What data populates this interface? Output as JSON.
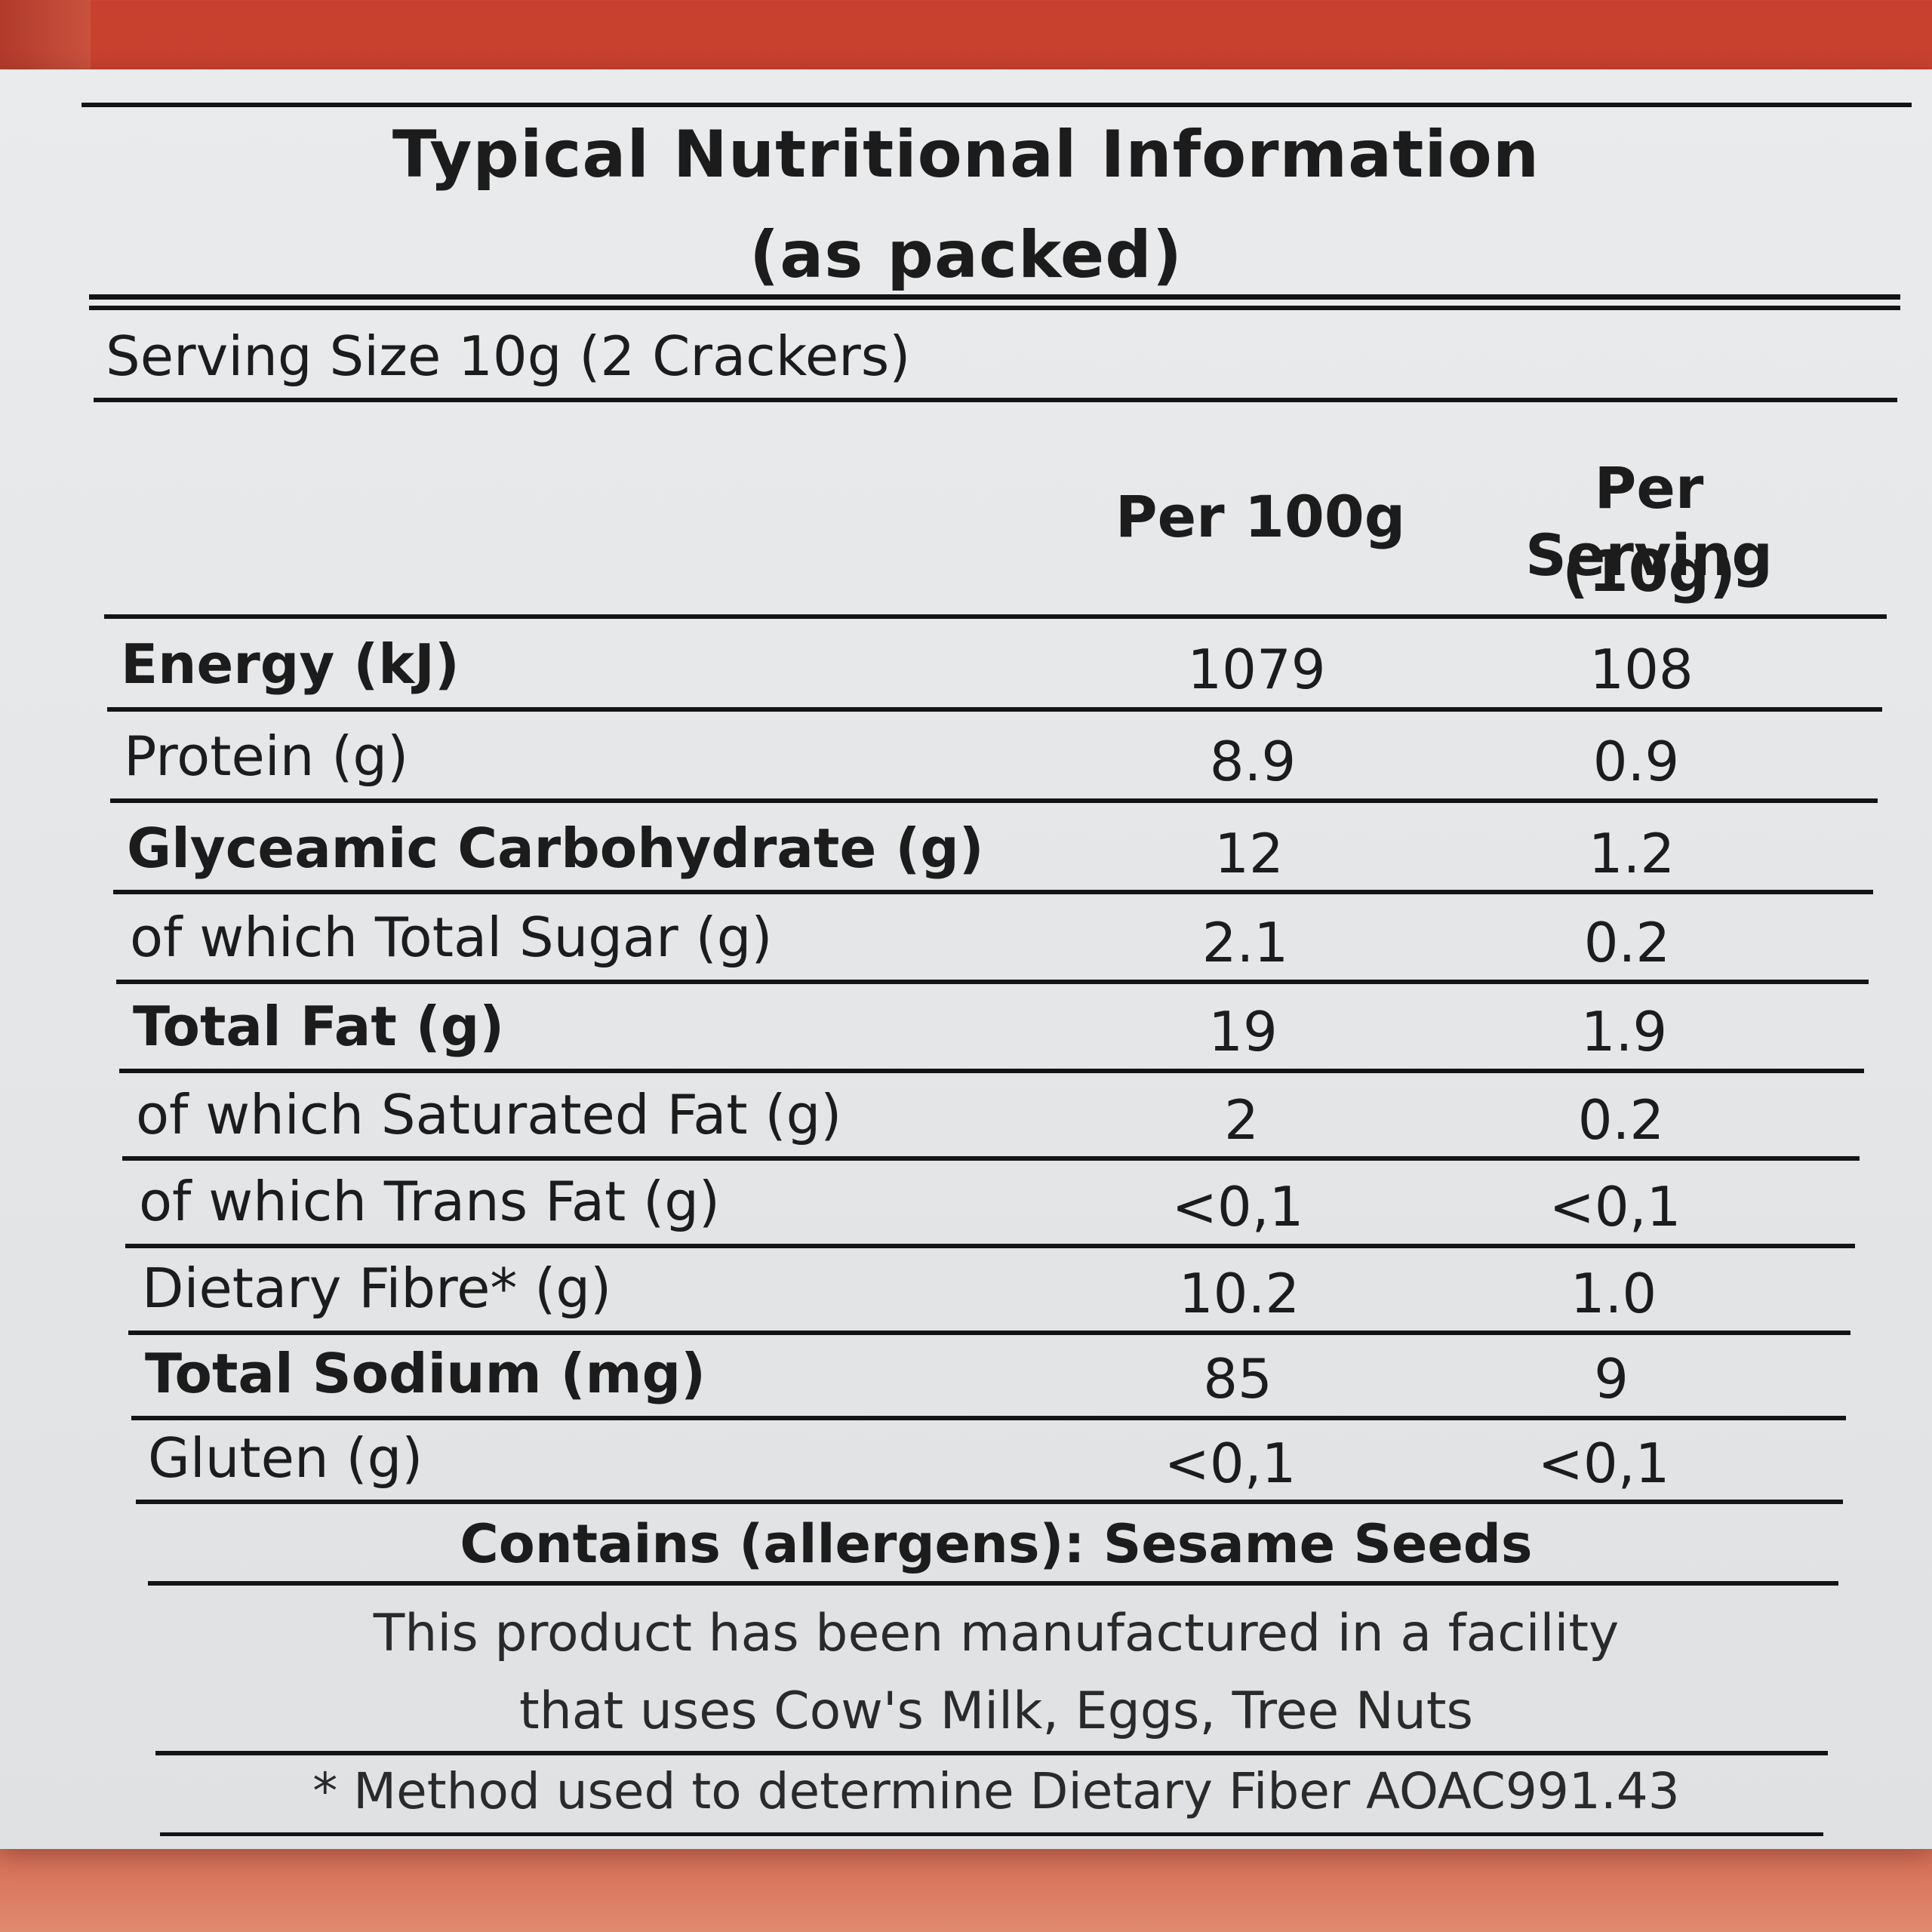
{
  "title": "Typical Nutritional Information",
  "subtitle": "(as packed)",
  "serving_size": "Serving Size 10g (2 Crackers)",
  "columns": {
    "per100": "Per 100g",
    "per_serving_line1": "Per Serving",
    "per_serving_line2": "(10g)"
  },
  "rows": [
    {
      "label": "Energy (kJ)",
      "per100": "1079",
      "per_serving": "108",
      "bold": true
    },
    {
      "label": "Protein (g)",
      "per100": "8.9",
      "per_serving": "0.9",
      "bold": false
    },
    {
      "label": "Glyceamic Carbohydrate (g)",
      "per100": "12",
      "per_serving": "1.2",
      "bold": true
    },
    {
      "label": "of which Total Sugar (g)",
      "per100": "2.1",
      "per_serving": "0.2",
      "bold": false
    },
    {
      "label": "Total Fat (g)",
      "per100": "19",
      "per_serving": "1.9",
      "bold": true
    },
    {
      "label": "of which Saturated Fat (g)",
      "per100": "2",
      "per_serving": "0.2",
      "bold": false
    },
    {
      "label": "of which Trans Fat (g)",
      "per100": "<0,1",
      "per_serving": "<0,1",
      "bold": false
    },
    {
      "label": "Dietary Fibre* (g)",
      "per100": "10.2",
      "per_serving": "1.0",
      "bold": false
    },
    {
      "label": "Total Sodium (mg)",
      "per100": "85",
      "per_serving": "9",
      "bold": true
    },
    {
      "label": "Gluten (g)",
      "per100": "<0,1",
      "per_serving": "<0,1",
      "bold": false
    }
  ],
  "contains": "Contains (allergens): Sesame Seeds",
  "facility_line1": "This product has been manufactured in a facility",
  "facility_line2": "that uses Cow's Milk, Eggs, Tree Nuts",
  "method_note": "* Method used to determine Dietary Fiber AOAC991.43"
}
